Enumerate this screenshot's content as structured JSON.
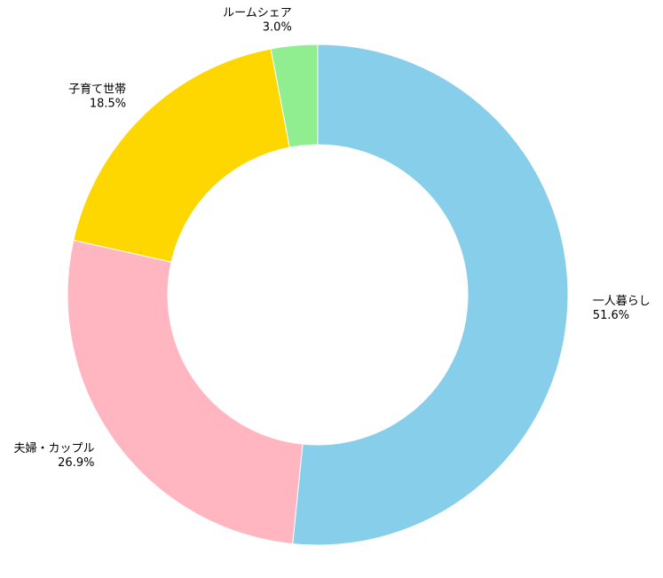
{
  "chart_data": {
    "type": "donut",
    "categories": [
      "一人暮らし",
      "夫婦・カップル",
      "子育て世帯",
      "ルームシェア"
    ],
    "values": [
      51.6,
      26.9,
      18.5,
      3.0
    ],
    "value_labels": [
      "51.6%",
      "26.9%",
      "18.5%",
      "3.0%"
    ],
    "colors": [
      "#87ceeb",
      "#ffb6c1",
      "#ffd700",
      "#90ee90"
    ]
  }
}
